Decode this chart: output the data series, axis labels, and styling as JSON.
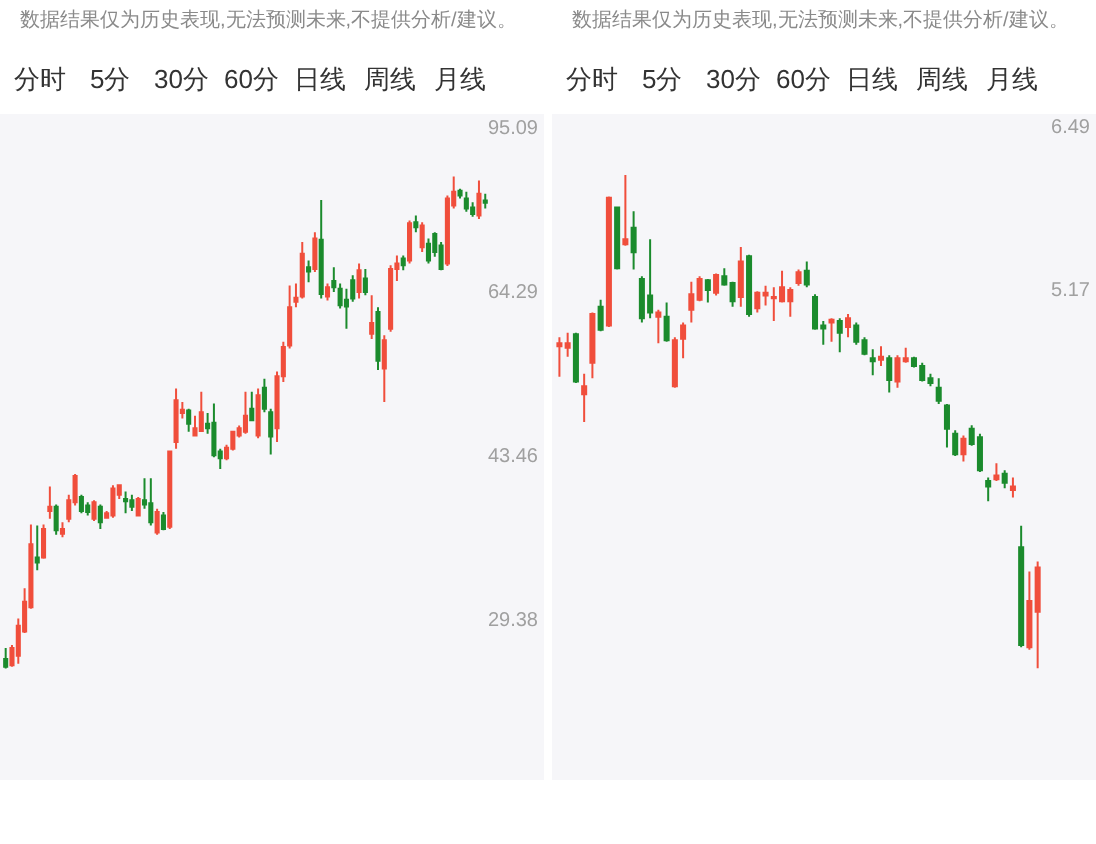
{
  "chart_data": [
    {
      "type": "candlestick",
      "log": "y",
      "tick_labels": "y",
      "ylim": [
        20,
        98
      ],
      "yticks": [
        29.38,
        43.46,
        64.29,
        95.09
      ],
      "annotations": [
        "数据结果仅为历史表现,无法预测未来,不提供分析/建议。",
        "分时",
        "5分",
        "30分",
        "60分",
        "日线",
        "周线",
        "月线"
      ],
      "categories": [
        null,
        null,
        null,
        null,
        null,
        null,
        null,
        null,
        null,
        null,
        null,
        null,
        null,
        null,
        null,
        null,
        null,
        null,
        null,
        null,
        null,
        null,
        null,
        null,
        null,
        null,
        null,
        null,
        null,
        null,
        null,
        null,
        null,
        null,
        null,
        null,
        null,
        null,
        null,
        null,
        null,
        null,
        null,
        null,
        null,
        null,
        null,
        null,
        null,
        null,
        null,
        null,
        null,
        null,
        null,
        null,
        null,
        null,
        null,
        null,
        null,
        null,
        null,
        null,
        null,
        null,
        null,
        null,
        null,
        null,
        null,
        null,
        null,
        null,
        null,
        null,
        null
      ],
      "ohlc": [
        [
          26.7,
          27.4,
          26.1,
          26.2
        ],
        [
          26.3,
          27.6,
          26.2,
          27.4
        ],
        [
          26.9,
          29.4,
          26.4,
          28.9
        ],
        [
          28.5,
          31.6,
          28.4,
          30.6
        ],
        [
          30.2,
          36.8,
          30.1,
          35.1
        ],
        [
          34.0,
          36.7,
          33.0,
          33.6
        ],
        [
          34.0,
          36.8,
          33.9,
          36.4
        ],
        [
          38.0,
          40.3,
          37.3,
          38.4
        ],
        [
          38.4,
          38.6,
          35.9,
          36.3
        ],
        [
          36.0,
          37.0,
          35.7,
          36.4
        ],
        [
          37.3,
          39.5,
          37.0,
          39.0
        ],
        [
          38.8,
          41.5,
          38.5,
          41.3
        ],
        [
          39.3,
          39.5,
          37.8,
          38.0
        ],
        [
          38.5,
          38.8,
          37.6,
          37.9
        ],
        [
          37.3,
          39.0,
          37.1,
          38.8
        ],
        [
          38.4,
          38.6,
          36.4,
          37.0
        ],
        [
          37.4,
          38.0,
          37.3,
          37.8
        ],
        [
          37.6,
          40.4,
          37.4,
          40.1
        ],
        [
          39.5,
          40.5,
          39.1,
          40.4
        ],
        [
          39.1,
          39.8,
          37.8,
          38.9
        ],
        [
          39.0,
          39.5,
          38.0,
          38.4
        ],
        [
          37.6,
          39.3,
          37.5,
          39.1
        ],
        [
          39.0,
          41.1,
          38.2,
          38.6
        ],
        [
          38.7,
          41.1,
          36.7,
          37.0
        ],
        [
          36.1,
          38.2,
          35.9,
          37.9
        ],
        [
          37.6,
          37.9,
          36.3,
          36.4
        ],
        [
          36.6,
          43.9,
          36.4,
          43.8
        ],
        [
          44.8,
          50.9,
          44.1,
          49.5
        ],
        [
          48.0,
          49.3,
          47.4,
          48.4
        ],
        [
          48.3,
          48.5,
          45.9,
          46.8
        ],
        [
          45.5,
          47.7,
          45.4,
          46.3
        ],
        [
          46.0,
          50.5,
          45.9,
          48.1
        ],
        [
          46.8,
          48.0,
          45.7,
          46.3
        ],
        [
          46.9,
          49.1,
          43.2,
          43.4
        ],
        [
          43.8,
          44.1,
          42.0,
          43.1
        ],
        [
          43.1,
          44.5,
          42.9,
          44.2
        ],
        [
          44.1,
          46.0,
          43.9,
          45.9
        ],
        [
          45.5,
          46.6,
          45.3,
          46.3
        ],
        [
          45.9,
          50.5,
          45.7,
          47.7
        ],
        [
          48.5,
          50.5,
          47.1,
          47.2
        ],
        [
          45.5,
          50.9,
          45.2,
          50.1
        ],
        [
          51.0,
          52.1,
          48.1,
          48.5
        ],
        [
          48.1,
          48.5,
          43.5,
          45.4
        ],
        [
          46.3,
          53.0,
          44.8,
          52.4
        ],
        [
          52.4,
          56.9,
          51.7,
          56.2
        ],
        [
          56.4,
          65.1,
          56.0,
          61.8
        ],
        [
          62.6,
          65.4,
          61.8,
          63.2
        ],
        [
          63.4,
          72.2,
          63.1,
          70.2
        ],
        [
          68.0,
          69.1,
          65.6,
          67.3
        ],
        [
          67.7,
          73.9,
          67.2,
          72.8
        ],
        [
          72.6,
          79.8,
          63.1,
          63.8
        ],
        [
          63.4,
          65.4,
          62.8,
          64.8
        ],
        [
          65.8,
          68.0,
          64.1,
          64.8
        ],
        [
          64.6,
          65.4,
          61.6,
          62.1
        ],
        [
          62.9,
          64.6,
          58.7,
          61.9
        ],
        [
          65.9,
          66.7,
          62.6,
          63.1
        ],
        [
          64.1,
          68.6,
          63.1,
          67.5
        ],
        [
          66.2,
          67.7,
          63.6,
          64.1
        ],
        [
          58.0,
          63.6,
          57.3,
          59.5
        ],
        [
          61.1,
          61.8,
          53.2,
          54.4
        ],
        [
          53.4,
          57.8,
          49.3,
          57.1
        ],
        [
          58.7,
          68.3,
          58.3,
          67.7
        ],
        [
          67.7,
          69.9,
          65.8,
          68.6
        ],
        [
          69.4,
          69.9,
          67.5,
          68.3
        ],
        [
          69.1,
          76.0,
          68.6,
          75.5
        ],
        [
          75.7,
          76.9,
          73.9,
          74.8
        ],
        [
          71.3,
          75.7,
          70.5,
          75.1
        ],
        [
          71.9,
          72.8,
          68.6,
          69.1
        ],
        [
          73.6,
          73.9,
          69.7,
          70.5
        ],
        [
          71.6,
          72.2,
          67.5,
          67.7
        ],
        [
          68.6,
          80.7,
          68.2,
          80.1
        ],
        [
          78.8,
          84.4,
          78.2,
          81.4
        ],
        [
          81.6,
          82.0,
          80.1,
          80.7
        ],
        [
          80.1,
          81.4,
          77.6,
          78.2
        ],
        [
          78.4,
          79.4,
          76.7,
          77.2
        ],
        [
          76.9,
          83.6,
          76.3,
          81.0
        ],
        [
          79.7,
          81.0,
          78.2,
          79.3
        ]
      ],
      "colors": [
        "#1b8b2d",
        "#f04e3c",
        "#f04e3c",
        "#f04e3c",
        "#f04e3c",
        "#1b8b2d",
        "#f04e3c",
        "#f04e3c",
        "#1b8b2d",
        "#f04e3c",
        "#f04e3c",
        "#f04e3c",
        "#1b8b2d",
        "#1b8b2d",
        "#f04e3c",
        "#1b8b2d",
        "#f04e3c",
        "#f04e3c",
        "#f04e3c",
        "#1b8b2d",
        "#1b8b2d",
        "#f04e3c",
        "#1b8b2d",
        "#1b8b2d",
        "#f04e3c",
        "#1b8b2d",
        "#f04e3c",
        "#f04e3c",
        "#f04e3c",
        "#1b8b2d",
        "#f04e3c",
        "#f04e3c",
        "#1b8b2d",
        "#1b8b2d",
        "#1b8b2d",
        "#f04e3c",
        "#f04e3c",
        "#f04e3c",
        "#f04e3c",
        "#1b8b2d",
        "#f04e3c",
        "#1b8b2d",
        "#1b8b2d",
        "#f04e3c",
        "#f04e3c",
        "#f04e3c",
        "#f04e3c",
        "#f04e3c",
        "#1b8b2d",
        "#f04e3c",
        "#1b8b2d",
        "#f04e3c",
        "#1b8b2d",
        "#1b8b2d",
        "#1b8b2d",
        "#1b8b2d",
        "#f04e3c",
        "#1b8b2d",
        "#f04e3c",
        "#1b8b2d",
        "#f04e3c",
        "#f04e3c",
        "#f04e3c",
        "#1b8b2d",
        "#f04e3c",
        "#1b8b2d",
        "#f04e3c",
        "#1b8b2d",
        "#1b8b2d",
        "#1b8b2d",
        "#f04e3c",
        "#f04e3c",
        "#1b8b2d",
        "#1b8b2d",
        "#1b8b2d",
        "#f04e3c",
        "#1b8b2d"
      ]
    },
    {
      "type": "candlestick",
      "log": "y",
      "tick_labels": "y",
      "ylim": [
        2.6,
        6.6
      ],
      "yticks": [
        5.17,
        6.49
      ],
      "annotations": [
        "数据结果仅为历史表现,无法预测未来,不提供分析/建议。",
        "分时",
        "5分",
        "30分",
        "60分",
        "日线",
        "周线",
        "月线"
      ],
      "categories": [
        null,
        null,
        null,
        null,
        null,
        null,
        null,
        null,
        null,
        null,
        null,
        null,
        null,
        null,
        null,
        null,
        null,
        null,
        null,
        null,
        null,
        null,
        null,
        null,
        null,
        null,
        null,
        null,
        null,
        null,
        null,
        null,
        null,
        null,
        null,
        null,
        null,
        null,
        null,
        null,
        null,
        null,
        null,
        null,
        null,
        null,
        null,
        null,
        null,
        null,
        null,
        null,
        null,
        null,
        null,
        null,
        null,
        null,
        null
      ],
      "ohlc": [
        [
          4.77,
          4.83,
          4.57,
          4.79
        ],
        [
          4.76,
          4.86,
          4.7,
          4.79
        ],
        [
          4.85,
          4.86,
          4.53,
          4.54
        ],
        [
          4.46,
          4.59,
          4.29,
          4.51
        ],
        [
          4.66,
          5.0,
          4.56,
          4.99
        ],
        [
          5.04,
          5.09,
          4.87,
          4.88
        ],
        [
          4.91,
          5.88,
          4.9,
          5.87
        ],
        [
          5.79,
          5.8,
          5.31,
          5.32
        ],
        [
          5.5,
          6.06,
          5.49,
          5.54
        ],
        [
          5.63,
          5.76,
          5.31,
          5.44
        ],
        [
          5.24,
          5.26,
          4.93,
          4.96
        ],
        [
          5.12,
          5.54,
          4.96,
          5.0
        ],
        [
          4.97,
          5.02,
          4.79,
          5.0
        ],
        [
          4.97,
          5.07,
          4.8,
          4.81
        ],
        [
          4.51,
          4.83,
          4.5,
          4.81
        ],
        [
          4.82,
          4.93,
          4.69,
          4.91
        ],
        [
          5.02,
          5.22,
          4.93,
          5.13
        ],
        [
          5.09,
          5.26,
          5.08,
          5.24
        ],
        [
          5.23,
          5.24,
          5.07,
          5.16
        ],
        [
          5.14,
          5.28,
          5.12,
          5.27
        ],
        [
          5.26,
          5.32,
          5.19,
          5.2
        ],
        [
          5.21,
          5.22,
          5.04,
          5.08
        ],
        [
          5.11,
          5.48,
          5.04,
          5.37
        ],
        [
          5.41,
          5.42,
          4.97,
          4.99
        ],
        [
          5.03,
          5.15,
          5.0,
          5.14
        ],
        [
          5.12,
          5.19,
          5.05,
          5.14
        ],
        [
          5.1,
          5.18,
          4.94,
          5.11
        ],
        [
          5.08,
          5.3,
          5.07,
          5.18
        ],
        [
          5.08,
          5.18,
          4.97,
          5.16
        ],
        [
          5.21,
          5.31,
          5.19,
          5.29
        ],
        [
          5.3,
          5.37,
          5.18,
          5.2
        ],
        [
          5.11,
          5.13,
          4.88,
          4.89
        ],
        [
          4.91,
          4.94,
          4.78,
          4.89
        ],
        [
          4.93,
          4.96,
          4.8,
          4.95
        ],
        [
          4.94,
          4.96,
          4.73,
          4.86
        ],
        [
          4.9,
          4.99,
          4.83,
          4.96
        ],
        [
          4.91,
          4.93,
          4.78,
          4.8
        ],
        [
          4.81,
          4.83,
          4.71,
          4.72
        ],
        [
          4.69,
          4.75,
          4.58,
          4.67
        ],
        [
          4.68,
          4.77,
          4.64,
          4.7
        ],
        [
          4.69,
          4.71,
          4.47,
          4.55
        ],
        [
          4.54,
          4.71,
          4.5,
          4.69
        ],
        [
          4.67,
          4.76,
          4.66,
          4.69
        ],
        [
          4.69,
          4.7,
          4.63,
          4.64
        ],
        [
          4.64,
          4.66,
          4.54,
          4.55
        ],
        [
          4.56,
          4.59,
          4.51,
          4.53
        ],
        [
          4.5,
          4.56,
          4.4,
          4.42
        ],
        [
          4.39,
          4.4,
          4.14,
          4.25
        ],
        [
          4.22,
          4.24,
          4.09,
          4.1
        ],
        [
          4.1,
          4.21,
          4.06,
          4.19
        ],
        [
          4.25,
          4.27,
          4.15,
          4.16
        ],
        [
          4.2,
          4.22,
          4.0,
          4.01
        ],
        [
          3.95,
          3.97,
          3.84,
          3.92
        ],
        [
          3.96,
          4.05,
          3.95,
          3.98
        ],
        [
          3.99,
          4.01,
          3.91,
          3.94
        ],
        [
          3.9,
          3.97,
          3.86,
          3.92
        ],
        [
          3.6,
          3.71,
          3.13,
          3.14
        ],
        [
          3.13,
          3.48,
          3.12,
          3.34
        ],
        [
          3.29,
          3.53,
          3.04,
          3.5
        ]
      ],
      "colors": [
        "#f04e3c",
        "#f04e3c",
        "#1b8b2d",
        "#f04e3c",
        "#f04e3c",
        "#1b8b2d",
        "#f04e3c",
        "#1b8b2d",
        "#f04e3c",
        "#1b8b2d",
        "#1b8b2d",
        "#1b8b2d",
        "#f04e3c",
        "#1b8b2d",
        "#f04e3c",
        "#f04e3c",
        "#f04e3c",
        "#f04e3c",
        "#1b8b2d",
        "#f04e3c",
        "#1b8b2d",
        "#1b8b2d",
        "#f04e3c",
        "#1b8b2d",
        "#f04e3c",
        "#f04e3c",
        "#f04e3c",
        "#f04e3c",
        "#f04e3c",
        "#f04e3c",
        "#1b8b2d",
        "#1b8b2d",
        "#1b8b2d",
        "#f04e3c",
        "#1b8b2d",
        "#f04e3c",
        "#1b8b2d",
        "#1b8b2d",
        "#1b8b2d",
        "#f04e3c",
        "#1b8b2d",
        "#f04e3c",
        "#f04e3c",
        "#1b8b2d",
        "#1b8b2d",
        "#1b8b2d",
        "#1b8b2d",
        "#1b8b2d",
        "#1b8b2d",
        "#f04e3c",
        "#1b8b2d",
        "#1b8b2d",
        "#1b8b2d",
        "#f04e3c",
        "#1b8b2d",
        "#f04e3c",
        "#1b8b2d",
        "#f04e3c",
        "#f04e3c"
      ]
    }
  ]
}
